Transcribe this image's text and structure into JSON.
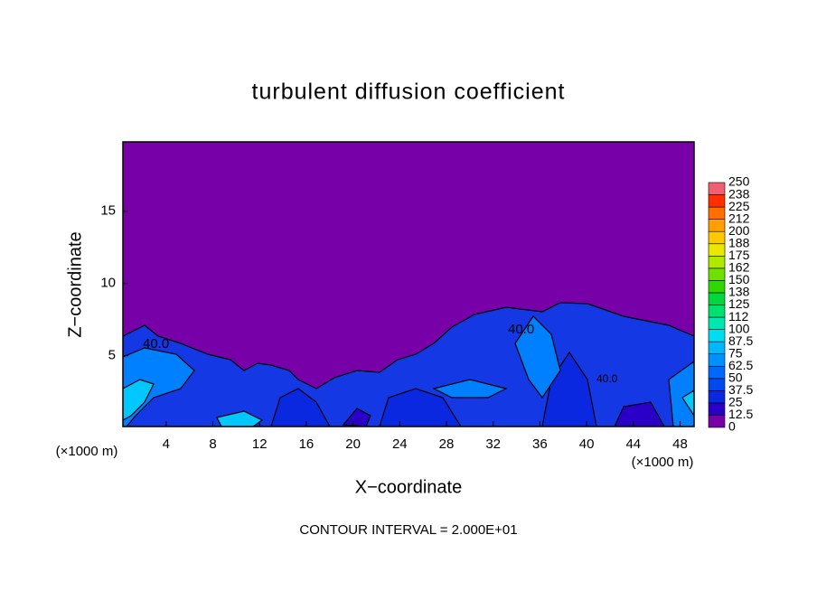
{
  "chart_data": {
    "type": "contour",
    "title": "turbulent diffusion coefficient",
    "x_label": "X−coordinate",
    "y_label": "Z−coordinate",
    "x_unit_left": "(×1000 m)",
    "x_unit_right": "(×1000 m)",
    "footer": "CONTOUR INTERVAL = 2.000E+01",
    "contour_labels": [
      "40.0",
      "40.0",
      "40.0"
    ],
    "xlim": [
      0.3,
      49.2
    ],
    "ylim": [
      0.1,
      19.8
    ],
    "xticks": [
      4,
      8,
      12,
      16,
      20,
      24,
      28,
      32,
      36,
      40,
      44,
      48
    ],
    "yticks": [
      5,
      10,
      15
    ],
    "colorbar": {
      "levels": [
        0,
        12.5,
        25,
        37.5,
        50,
        62.5,
        75,
        87.5,
        100,
        112.5,
        125,
        137.5,
        150,
        162.5,
        175,
        187.5,
        200,
        212.5,
        225,
        237.5,
        250
      ],
      "labels": [
        "0",
        "12.5",
        "25",
        "37.5",
        "50",
        "62.5",
        "75",
        "87.5",
        "100",
        "112",
        "125",
        "138",
        "150",
        "162",
        "175",
        "188",
        "200",
        "212",
        "225",
        "238",
        "250"
      ],
      "colors": [
        "#7800a8",
        "#2a00c8",
        "#0a28e0",
        "#0048f0",
        "#0068ff",
        "#0090ff",
        "#00b8ff",
        "#00dcf0",
        "#00e8b0",
        "#00e070",
        "#00d840",
        "#30d800",
        "#70e000",
        "#b0e800",
        "#e8e800",
        "#ffc800",
        "#ffa000",
        "#ff7000",
        "#ff3000",
        "#f06070"
      ]
    }
  }
}
